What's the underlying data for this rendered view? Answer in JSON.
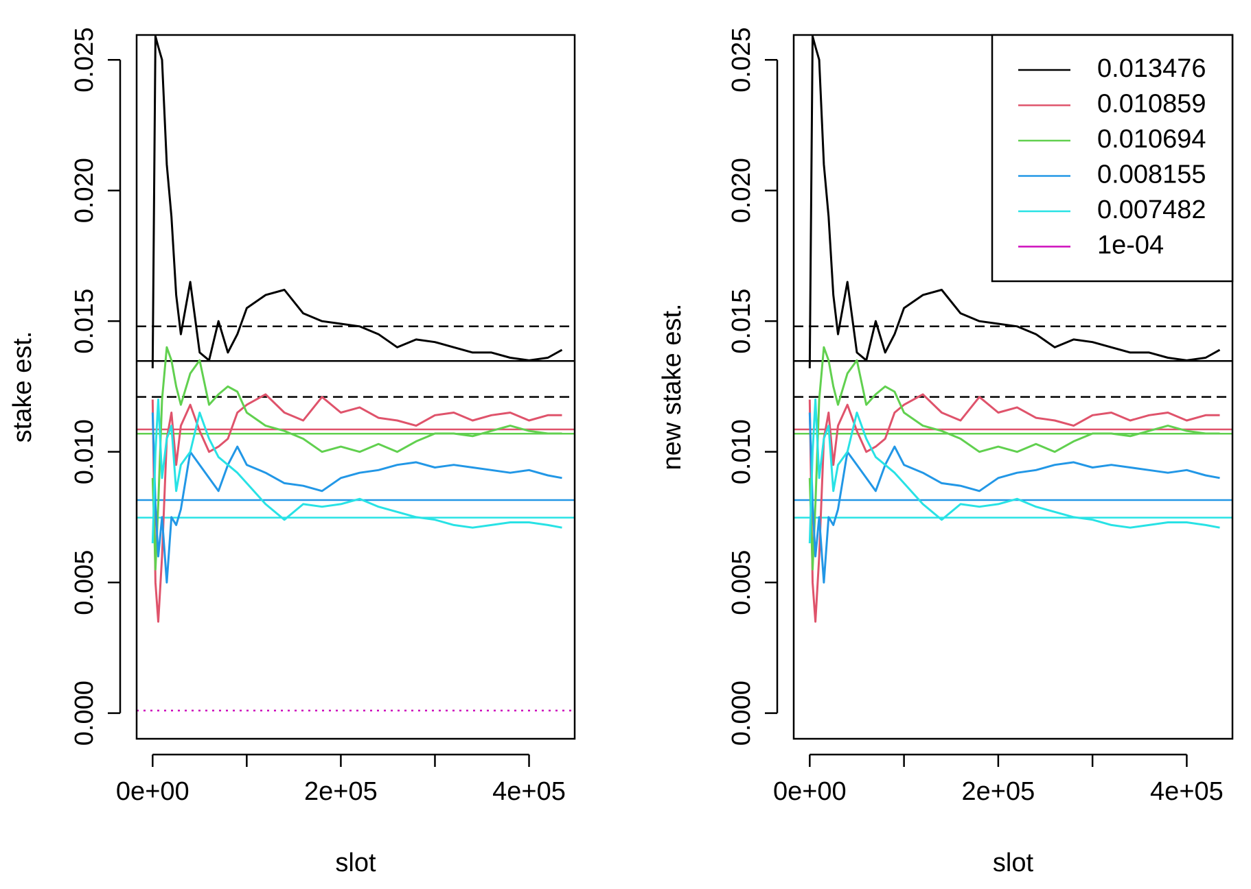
{
  "chart_data": [
    {
      "type": "line",
      "ylabel": "stake est.",
      "xlabel": "slot",
      "xlim": [
        -17000,
        448500
      ],
      "ylim": [
        -0.00098,
        0.02595
      ],
      "xticks": [
        {
          "value": 0,
          "label": "0e+00"
        },
        {
          "value": 100000,
          "label": null
        },
        {
          "value": 200000,
          "label": "2e+05"
        },
        {
          "value": 300000,
          "label": null
        },
        {
          "value": 400000,
          "label": "4e+05"
        }
      ],
      "yticks": [
        {
          "value": 0,
          "label": "0.000"
        },
        {
          "value": 0.005,
          "label": "0.005"
        },
        {
          "value": 0.01,
          "label": "0.010"
        },
        {
          "value": 0.015,
          "label": "0.015"
        },
        {
          "value": 0.02,
          "label": "0.020"
        },
        {
          "value": 0.025,
          "label": "0.025"
        }
      ],
      "x": [
        0,
        3000,
        6000,
        10000,
        15000,
        20000,
        25000,
        30000,
        40000,
        50000,
        60000,
        70000,
        80000,
        90000,
        100000,
        120000,
        140000,
        160000,
        180000,
        200000,
        220000,
        240000,
        260000,
        280000,
        300000,
        320000,
        340000,
        360000,
        380000,
        400000,
        420000,
        435000
      ],
      "series": [
        {
          "color": "#000000",
          "values": [
            0.0132,
            0.0259,
            0.0255,
            0.025,
            0.021,
            0.019,
            0.016,
            0.0145,
            0.0165,
            0.0138,
            0.0135,
            0.015,
            0.0138,
            0.0145,
            0.0155,
            0.016,
            0.0162,
            0.0153,
            0.015,
            0.0149,
            0.0148,
            0.0145,
            0.014,
            0.0143,
            0.0142,
            0.014,
            0.0138,
            0.0138,
            0.0136,
            0.0135,
            0.0136,
            0.0139
          ]
        },
        {
          "color": "#df536b",
          "values": [
            0.012,
            0.005,
            0.0035,
            0.006,
            0.0105,
            0.0115,
            0.0095,
            0.011,
            0.0118,
            0.0108,
            0.01,
            0.0102,
            0.0105,
            0.0115,
            0.0118,
            0.0122,
            0.0115,
            0.0112,
            0.0121,
            0.0115,
            0.0117,
            0.0113,
            0.0112,
            0.011,
            0.0114,
            0.0115,
            0.0112,
            0.0114,
            0.0115,
            0.0112,
            0.0114,
            0.0114
          ]
        },
        {
          "color": "#61d04f",
          "values": [
            0.009,
            0.0055,
            0.008,
            0.012,
            0.014,
            0.0135,
            0.0125,
            0.0118,
            0.013,
            0.0135,
            0.0118,
            0.0122,
            0.0125,
            0.0123,
            0.0115,
            0.011,
            0.0108,
            0.0105,
            0.01,
            0.0102,
            0.01,
            0.0103,
            0.01,
            0.0104,
            0.0107,
            0.0107,
            0.0106,
            0.0108,
            0.011,
            0.0108,
            0.0107,
            0.0107
          ]
        },
        {
          "color": "#2297e6",
          "values": [
            0.0115,
            0.008,
            0.006,
            0.0075,
            0.005,
            0.0075,
            0.0072,
            0.0078,
            0.01,
            0.0095,
            0.009,
            0.0085,
            0.0095,
            0.0102,
            0.0095,
            0.0092,
            0.0088,
            0.0087,
            0.0085,
            0.009,
            0.0092,
            0.0093,
            0.0095,
            0.0096,
            0.0094,
            0.0095,
            0.0094,
            0.0093,
            0.0092,
            0.0093,
            0.0091,
            0.009
          ]
        },
        {
          "color": "#28e2e5",
          "values": [
            0.0065,
            0.01,
            0.012,
            0.009,
            0.0105,
            0.011,
            0.0085,
            0.0095,
            0.01,
            0.0115,
            0.0105,
            0.0098,
            0.0095,
            0.0092,
            0.0088,
            0.008,
            0.0074,
            0.008,
            0.0079,
            0.008,
            0.0082,
            0.0079,
            0.0077,
            0.0075,
            0.0074,
            0.0072,
            0.0071,
            0.0072,
            0.0073,
            0.0073,
            0.0072,
            0.0071
          ]
        }
      ],
      "hlines": [
        {
          "value": 0.013476,
          "color": "#000000",
          "style": "solid"
        },
        {
          "value": 0.010859,
          "color": "#df536b",
          "style": "solid"
        },
        {
          "value": 0.010694,
          "color": "#61d04f",
          "style": "solid"
        },
        {
          "value": 0.008155,
          "color": "#2297e6",
          "style": "solid"
        },
        {
          "value": 0.007482,
          "color": "#28e2e5",
          "style": "solid"
        },
        {
          "value": 0.0148,
          "color": "#000000",
          "style": "dashed"
        },
        {
          "value": 0.0121,
          "color": "#000000",
          "style": "dashed"
        },
        {
          "value": 0.0001,
          "color": "#cd0bbc",
          "style": "dotted"
        }
      ]
    },
    {
      "type": "line",
      "ylabel": "new stake est.",
      "xlabel": "slot",
      "xlim": [
        -17000,
        448500
      ],
      "ylim": [
        -0.00098,
        0.02595
      ],
      "xticks": [
        {
          "value": 0,
          "label": "0e+00"
        },
        {
          "value": 100000,
          "label": null
        },
        {
          "value": 200000,
          "label": "2e+05"
        },
        {
          "value": 300000,
          "label": null
        },
        {
          "value": 400000,
          "label": "4e+05"
        }
      ],
      "yticks": [
        {
          "value": 0,
          "label": "0.000"
        },
        {
          "value": 0.005,
          "label": "0.005"
        },
        {
          "value": 0.01,
          "label": "0.010"
        },
        {
          "value": 0.015,
          "label": "0.015"
        },
        {
          "value": 0.02,
          "label": "0.020"
        },
        {
          "value": 0.025,
          "label": "0.025"
        }
      ],
      "legend": "topright",
      "x": [
        0,
        3000,
        6000,
        10000,
        15000,
        20000,
        25000,
        30000,
        40000,
        50000,
        60000,
        70000,
        80000,
        90000,
        100000,
        120000,
        140000,
        160000,
        180000,
        200000,
        220000,
        240000,
        260000,
        280000,
        300000,
        320000,
        340000,
        360000,
        380000,
        400000,
        420000,
        435000
      ],
      "series": [
        {
          "name": "0.013476",
          "color": "#000000",
          "values": [
            0.0132,
            0.0259,
            0.0255,
            0.025,
            0.021,
            0.019,
            0.016,
            0.0145,
            0.0165,
            0.0138,
            0.0135,
            0.015,
            0.0138,
            0.0145,
            0.0155,
            0.016,
            0.0162,
            0.0153,
            0.015,
            0.0149,
            0.0148,
            0.0145,
            0.014,
            0.0143,
            0.0142,
            0.014,
            0.0138,
            0.0138,
            0.0136,
            0.0135,
            0.0136,
            0.0139
          ]
        },
        {
          "name": "0.010859",
          "color": "#df536b",
          "values": [
            0.012,
            0.005,
            0.0035,
            0.006,
            0.0105,
            0.0115,
            0.0095,
            0.011,
            0.0118,
            0.0108,
            0.01,
            0.0102,
            0.0105,
            0.0115,
            0.0118,
            0.0122,
            0.0115,
            0.0112,
            0.0121,
            0.0115,
            0.0117,
            0.0113,
            0.0112,
            0.011,
            0.0114,
            0.0115,
            0.0112,
            0.0114,
            0.0115,
            0.0112,
            0.0114,
            0.0114
          ]
        },
        {
          "name": "0.010694",
          "color": "#61d04f",
          "values": [
            0.009,
            0.0055,
            0.008,
            0.012,
            0.014,
            0.0135,
            0.0125,
            0.0118,
            0.013,
            0.0135,
            0.0118,
            0.0122,
            0.0125,
            0.0123,
            0.0115,
            0.011,
            0.0108,
            0.0105,
            0.01,
            0.0102,
            0.01,
            0.0103,
            0.01,
            0.0104,
            0.0107,
            0.0107,
            0.0106,
            0.0108,
            0.011,
            0.0108,
            0.0107,
            0.0107
          ]
        },
        {
          "name": "0.008155",
          "color": "#2297e6",
          "values": [
            0.0115,
            0.008,
            0.006,
            0.0075,
            0.005,
            0.0075,
            0.0072,
            0.0078,
            0.01,
            0.0095,
            0.009,
            0.0085,
            0.0095,
            0.0102,
            0.0095,
            0.0092,
            0.0088,
            0.0087,
            0.0085,
            0.009,
            0.0092,
            0.0093,
            0.0095,
            0.0096,
            0.0094,
            0.0095,
            0.0094,
            0.0093,
            0.0092,
            0.0093,
            0.0091,
            0.009
          ]
        },
        {
          "name": "0.007482",
          "color": "#28e2e5",
          "values": [
            0.0065,
            0.01,
            0.012,
            0.009,
            0.0105,
            0.011,
            0.0085,
            0.0095,
            0.01,
            0.0115,
            0.0105,
            0.0098,
            0.0095,
            0.0092,
            0.0088,
            0.008,
            0.0074,
            0.008,
            0.0079,
            0.008,
            0.0082,
            0.0079,
            0.0077,
            0.0075,
            0.0074,
            0.0072,
            0.0071,
            0.0072,
            0.0073,
            0.0073,
            0.0072,
            0.0071
          ]
        },
        {
          "name": "1e-04",
          "color": "#cd0bbc",
          "values": [
            null,
            null,
            null,
            null,
            null,
            null,
            null,
            null,
            null,
            null,
            null,
            null,
            null,
            null,
            null,
            null,
            null,
            null,
            null,
            null,
            null,
            null,
            null,
            null,
            null,
            null,
            null,
            null,
            null,
            null,
            null,
            null
          ]
        }
      ],
      "hlines": [
        {
          "value": 0.013476,
          "color": "#000000",
          "style": "solid"
        },
        {
          "value": 0.010859,
          "color": "#df536b",
          "style": "solid"
        },
        {
          "value": 0.010694,
          "color": "#61d04f",
          "style": "solid"
        },
        {
          "value": 0.008155,
          "color": "#2297e6",
          "style": "solid"
        },
        {
          "value": 0.007482,
          "color": "#28e2e5",
          "style": "solid"
        },
        {
          "value": 0.0148,
          "color": "#000000",
          "style": "dashed"
        },
        {
          "value": 0.0121,
          "color": "#000000",
          "style": "dashed"
        }
      ]
    }
  ]
}
